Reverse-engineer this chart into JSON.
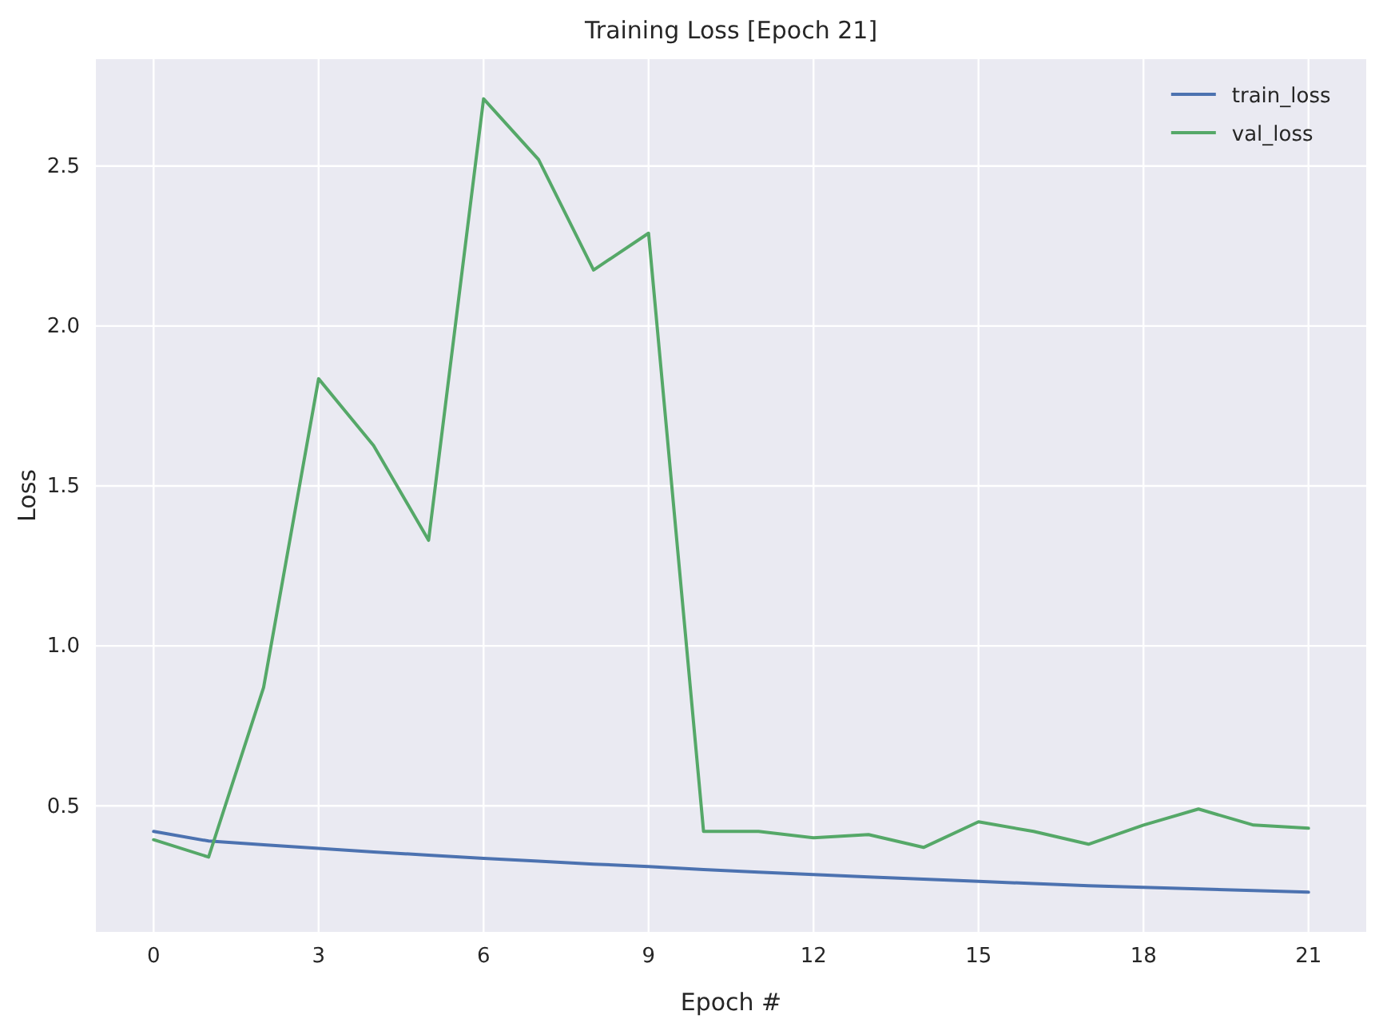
{
  "chart_data": {
    "type": "line",
    "title": "Training Loss [Epoch 21]",
    "xlabel": "Epoch #",
    "ylabel": "Loss",
    "x": [
      0,
      1,
      2,
      3,
      4,
      5,
      6,
      7,
      8,
      9,
      10,
      11,
      12,
      13,
      14,
      15,
      16,
      17,
      18,
      19,
      20,
      21
    ],
    "series": [
      {
        "name": "train_loss",
        "color": "#4c72b0",
        "values": [
          0.42,
          0.39,
          0.378,
          0.367,
          0.356,
          0.346,
          0.336,
          0.327,
          0.318,
          0.31,
          0.301,
          0.293,
          0.285,
          0.278,
          0.271,
          0.264,
          0.257,
          0.25,
          0.245,
          0.24,
          0.235,
          0.23
        ]
      },
      {
        "name": "val_loss",
        "color": "#55a868",
        "values": [
          0.394,
          0.34,
          0.87,
          1.835,
          1.626,
          1.33,
          2.71,
          2.52,
          2.175,
          2.29,
          0.42,
          0.42,
          0.4,
          0.41,
          0.37,
          0.45,
          0.42,
          0.38,
          0.44,
          0.49,
          0.44,
          0.43
        ]
      }
    ],
    "xlim": [
      -1.05,
      22.05
    ],
    "ylim": [
      0.106,
      2.834
    ],
    "xticks": [
      0,
      3,
      6,
      9,
      12,
      15,
      18,
      21
    ],
    "yticks": [
      0.5,
      {
        "value": 1,
        "label": "1.0"
      },
      1.5,
      {
        "value": 2,
        "label": "2.0"
      },
      2.5
    ],
    "grid": true,
    "legend": "top right",
    "line_style": "solid",
    "marker": "none"
  }
}
